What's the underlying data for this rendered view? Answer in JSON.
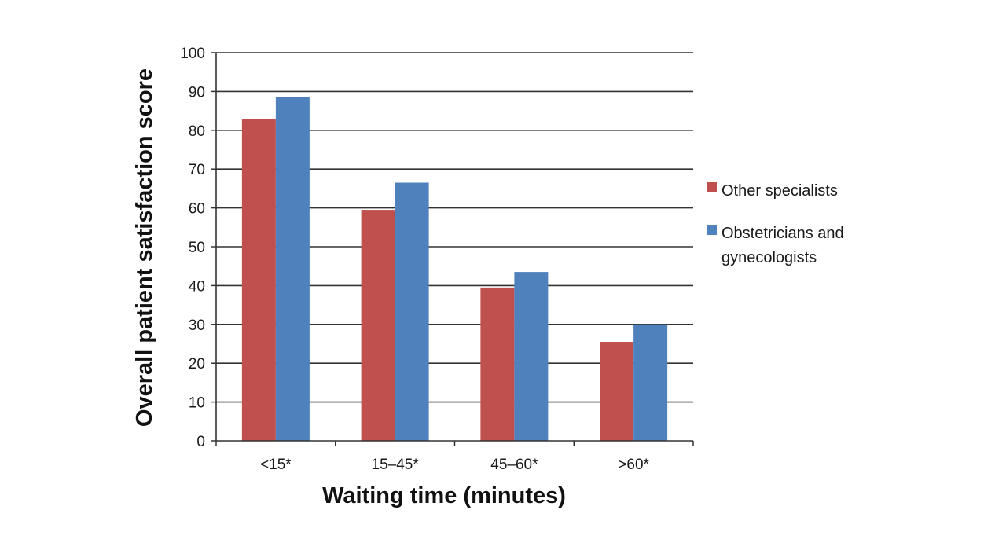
{
  "chart_data": {
    "type": "bar",
    "title": "",
    "xlabel": "Waiting time (minutes)",
    "ylabel": "Overall patient satisfaction score",
    "ylim": [
      0,
      100
    ],
    "yticks": [
      0,
      10,
      20,
      30,
      40,
      50,
      60,
      70,
      80,
      90,
      100
    ],
    "categories": [
      "<15*",
      "15–45*",
      "45–60*",
      ">60*"
    ],
    "series": [
      {
        "name": "Other specialists",
        "color": "#c0504d",
        "values": [
          83,
          59.5,
          39.5,
          25.5
        ]
      },
      {
        "name": "Obstetricians and gynecologists",
        "color": "#4f81bd",
        "values": [
          88.5,
          66.5,
          43.5,
          30
        ]
      }
    ],
    "legend": {
      "position": "right",
      "entries": [
        {
          "lines": [
            "Other specialists"
          ]
        },
        {
          "lines": [
            "Obstetricians and",
            "gynecologists"
          ]
        }
      ]
    },
    "grid": true
  }
}
